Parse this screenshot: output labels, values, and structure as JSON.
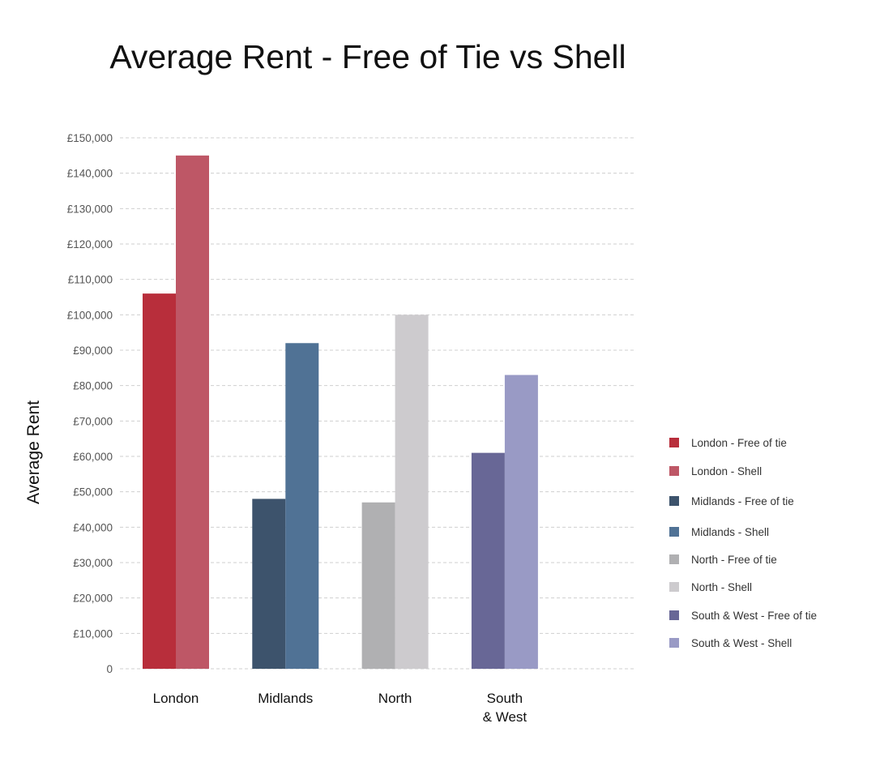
{
  "chart_data": {
    "type": "bar",
    "title": "Average Rent - Free of Tie vs Shell",
    "xlabel": "",
    "ylabel": "Average Rent",
    "ylim": [
      0,
      150000
    ],
    "yticks": [
      0,
      10000,
      20000,
      30000,
      40000,
      50000,
      60000,
      70000,
      80000,
      90000,
      100000,
      110000,
      120000,
      130000,
      140000,
      150000
    ],
    "ytick_labels": [
      "0",
      "£10,000",
      "£20,000",
      "£30,000",
      "£40,000",
      "£50,000",
      "£60,000",
      "£70,000",
      "£80,000",
      "£90,000",
      "£100,000",
      "£110,000",
      "£120,000",
      "£130,000",
      "£140,000",
      "£150,000"
    ],
    "grid": true,
    "legend_position": "right",
    "categories": [
      {
        "lines": [
          "London"
        ]
      },
      {
        "lines": [
          "Midlands"
        ]
      },
      {
        "lines": [
          "North"
        ]
      },
      {
        "lines": [
          "South",
          "& West"
        ]
      }
    ],
    "series": [
      {
        "name": "London - Free of tie",
        "category": 0,
        "value": 106000,
        "color": "#b82e3b"
      },
      {
        "name": "London - Shell",
        "category": 0,
        "value": 145000,
        "color": "#be5766"
      },
      {
        "name": "Midlands - Free of tie",
        "category": 1,
        "value": 48000,
        "color": "#3d536c"
      },
      {
        "name": "Midlands - Shell",
        "category": 1,
        "value": 92000,
        "color": "#507295"
      },
      {
        "name": "North - Free of tie",
        "category": 2,
        "value": 47000,
        "color": "#b0b0b2"
      },
      {
        "name": "North - Shell",
        "category": 2,
        "value": 100000,
        "color": "#cdcbce"
      },
      {
        "name": "South & West - Free of tie",
        "category": 3,
        "value": 61000,
        "color": "#686796"
      },
      {
        "name": "South & West - Shell",
        "category": 3,
        "value": 83000,
        "color": "#999ac5"
      }
    ]
  }
}
